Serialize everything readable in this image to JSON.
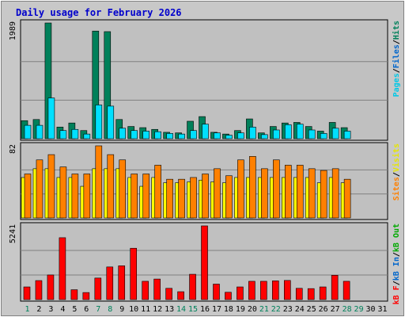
{
  "title": "Daily usage for February 2026",
  "colors": {
    "background": "#c8c8c8",
    "panel": "#c0c0c0",
    "title": "#0000cc",
    "hits": "#00805a",
    "files": "#00e0ff",
    "pages": "#00c8e6",
    "sites": "#ff8000",
    "visits": "#ffff00",
    "kb_in": "#0066cc",
    "kb_out": "#00aa00",
    "kb_f": "#ff0000",
    "weekend_day": "#00805a",
    "weekday": "#000000"
  },
  "chart_data": [
    {
      "type": "bar",
      "name": "hits-files-pages",
      "y_max_label": "1989",
      "ylim": [
        0,
        1989
      ],
      "legend": [
        {
          "text": "Pages",
          "color": "#00c8e6"
        },
        {
          "text": "/",
          "color": "#000000"
        },
        {
          "text": "Files",
          "color": "#0066cc"
        },
        {
          "text": "/",
          "color": "#000000"
        },
        {
          "text": "Hits",
          "color": "#00805a"
        }
      ],
      "categories": [
        "1",
        "2",
        "3",
        "4",
        "5",
        "6",
        "7",
        "8",
        "9",
        "10",
        "11",
        "12",
        "13",
        "14",
        "15",
        "16",
        "17",
        "18",
        "19",
        "20",
        "21",
        "22",
        "23",
        "24",
        "25",
        "26",
        "27",
        "28",
        "29",
        "30",
        "31"
      ],
      "series": [
        {
          "key": "hits",
          "values": [
            310,
            330,
            1989,
            200,
            270,
            140,
            1850,
            1840,
            330,
            210,
            190,
            160,
            110,
            100,
            300,
            380,
            110,
            80,
            140,
            340,
            100,
            210,
            270,
            280,
            210,
            130,
            280,
            190,
            0,
            0,
            0
          ]
        },
        {
          "key": "files",
          "values": [
            230,
            230,
            700,
            140,
            160,
            80,
            580,
            560,
            180,
            140,
            130,
            120,
            90,
            80,
            140,
            250,
            100,
            60,
            100,
            200,
            70,
            150,
            240,
            250,
            150,
            90,
            180,
            130,
            0,
            0,
            0
          ]
        }
      ]
    },
    {
      "type": "bar",
      "name": "visits-sites",
      "y_max_label": "82",
      "ylim": [
        0,
        82
      ],
      "legend": [
        {
          "text": "Sites",
          "color": "#ff8000"
        },
        {
          "text": "/",
          "color": "#000000"
        },
        {
          "text": "Visits",
          "color": "#e6e600"
        }
      ],
      "categories": [
        "1",
        "2",
        "3",
        "4",
        "5",
        "6",
        "7",
        "8",
        "9",
        "10",
        "11",
        "12",
        "13",
        "14",
        "15",
        "16",
        "17",
        "18",
        "19",
        "20",
        "21",
        "22",
        "23",
        "24",
        "25",
        "26",
        "27",
        "28",
        "29",
        "30",
        "31"
      ],
      "series": [
        {
          "key": "visits",
          "values": [
            46,
            56,
            56,
            46,
            46,
            36,
            56,
            56,
            56,
            46,
            36,
            46,
            40,
            40,
            41,
            43,
            41,
            40,
            46,
            46,
            46,
            46,
            46,
            46,
            46,
            40,
            46,
            40,
            0,
            0,
            0
          ]
        },
        {
          "key": "sites",
          "values": [
            50,
            66,
            72,
            58,
            50,
            50,
            82,
            72,
            66,
            50,
            50,
            60,
            44,
            44,
            46,
            50,
            56,
            48,
            66,
            70,
            56,
            66,
            60,
            60,
            56,
            54,
            56,
            44,
            0,
            0,
            0
          ]
        }
      ]
    },
    {
      "type": "bar",
      "name": "kbytes",
      "y_max_label": "5241",
      "ylim": [
        0,
        5241
      ],
      "legend": [
        {
          "text": "kB F",
          "color": "#ff0000"
        },
        {
          "text": "/",
          "color": "#000000"
        },
        {
          "text": "kB In",
          "color": "#0066cc"
        },
        {
          "text": "/",
          "color": "#000000"
        },
        {
          "text": "kB Out",
          "color": "#00aa00"
        }
      ],
      "categories": [
        "1",
        "2",
        "3",
        "4",
        "5",
        "6",
        "7",
        "8",
        "9",
        "10",
        "11",
        "12",
        "13",
        "14",
        "15",
        "16",
        "17",
        "18",
        "19",
        "20",
        "21",
        "22",
        "23",
        "24",
        "25",
        "26",
        "27",
        "28",
        "29",
        "30",
        "31"
      ],
      "series": [
        {
          "key": "kb_f",
          "values": [
            900,
            1350,
            1750,
            4400,
            700,
            500,
            1530,
            2320,
            2400,
            3650,
            1300,
            1460,
            800,
            560,
            1800,
            5241,
            1100,
            520,
            900,
            1300,
            1300,
            1330,
            1360,
            800,
            780,
            900,
            1730,
            1300,
            0,
            0,
            0
          ]
        }
      ]
    }
  ],
  "x_labels": [
    "1",
    "2",
    "3",
    "4",
    "5",
    "6",
    "7",
    "8",
    "9",
    "10",
    "11",
    "12",
    "13",
    "14",
    "15",
    "16",
    "17",
    "18",
    "19",
    "20",
    "21",
    "22",
    "23",
    "24",
    "25",
    "26",
    "27",
    "28",
    "29",
    "30",
    "31"
  ],
  "weekend_days": [
    "1",
    "7",
    "8",
    "14",
    "15",
    "21",
    "22",
    "28",
    "29"
  ]
}
